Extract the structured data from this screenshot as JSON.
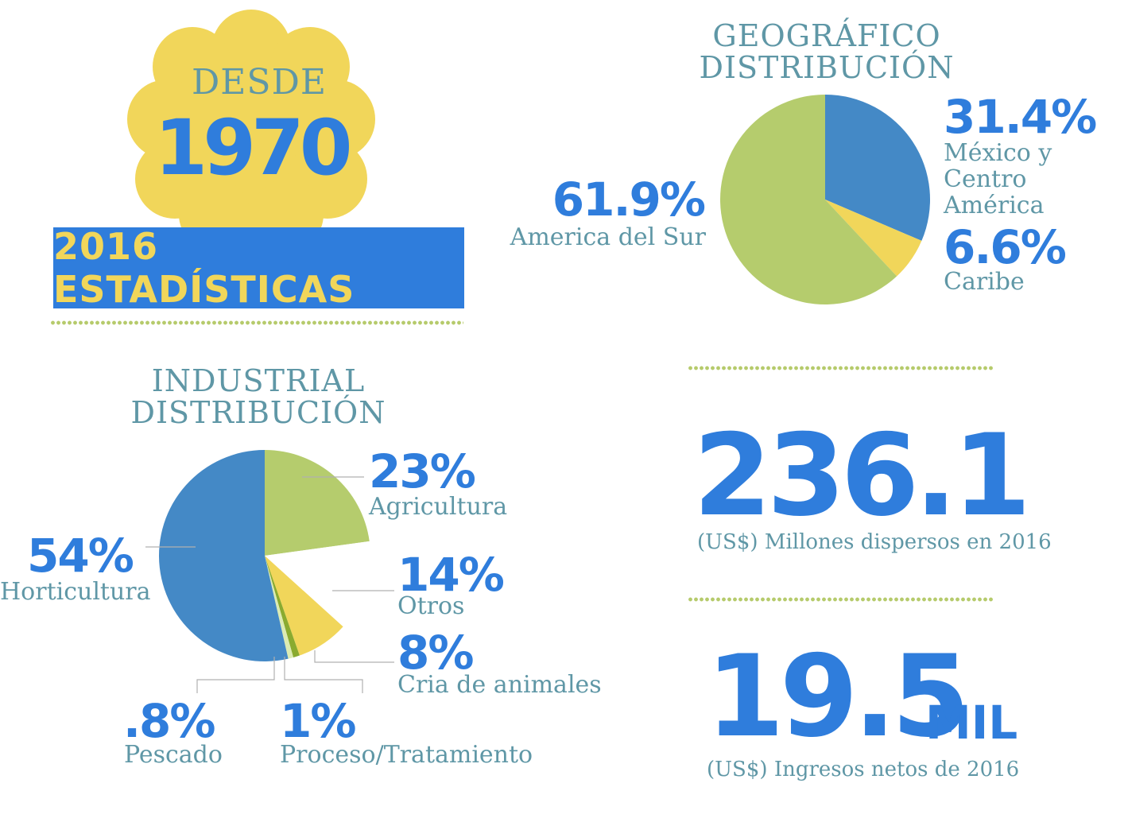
{
  "badge": {
    "desde": "DESDE",
    "year": "1970"
  },
  "banner": {
    "label": "2016 ESTADÍSTICAS"
  },
  "colors": {
    "blue": "#2f7ddc",
    "pie_blue": "#4489c6",
    "green": "#b5cc6d",
    "yellow": "#f1d65a",
    "teal_text": "#5f97a6",
    "dark_green": "#8aab2f",
    "pale_green": "#dcebb2",
    "white": "#ffffff"
  },
  "geo": {
    "heading_line1": "GEOGRÁFICO",
    "heading_line2": "DISTRIBUCIÓN",
    "labels": [
      {
        "pct": "31.4%",
        "line1": "México y",
        "line2": "Centro América"
      },
      {
        "pct": "6.6%",
        "line1": "Caribe",
        "line2": ""
      },
      {
        "pct": "61.9%",
        "line1": "America del Sur",
        "line2": ""
      }
    ]
  },
  "industrial": {
    "heading_line1": "INDUSTRIAL",
    "heading_line2": "DISTRIBUCIÓN",
    "labels": [
      {
        "pct": "23%",
        "name": "Agricultura"
      },
      {
        "pct": "14%",
        "name": "Otros"
      },
      {
        "pct": "8%",
        "name": "Cria de animales"
      },
      {
        "pct": "1%",
        "name": "Proceso/Tratamiento"
      },
      {
        "pct": ".8%",
        "name": "Pescado"
      },
      {
        "pct": "54%",
        "name": "Horticultura"
      }
    ]
  },
  "stats": {
    "dispersed_value": "236.1",
    "dispersed_caption": "(US$) Millones dispersos en 2016",
    "income_value": "19.5",
    "income_unit": "MIL",
    "income_caption": "(US$) Ingresos netos de 2016"
  },
  "chart_data": [
    {
      "type": "pie",
      "title": "GEOGRÁFICO DISTRIBUCIÓN",
      "categories": [
        "México y Centro América",
        "Caribe",
        "America del Sur"
      ],
      "values": [
        31.4,
        6.6,
        61.9
      ],
      "colors": [
        "#4489c6",
        "#f1d65a",
        "#b5cc6d"
      ],
      "start_angle_deg": 0,
      "direction": "clockwise"
    },
    {
      "type": "pie",
      "title": "INDUSTRIAL DISTRIBUCIÓN",
      "categories": [
        "Agricultura",
        "Otros",
        "Cria de animales",
        "Proceso/Tratamiento",
        "Pescado",
        "Horticultura"
      ],
      "values": [
        23,
        14,
        8,
        1,
        0.8,
        54
      ],
      "colors": [
        "#b5cc6d",
        "#ffffff",
        "#f1d65a",
        "#8aab2f",
        "#dcebb2",
        "#4489c6"
      ],
      "start_angle_deg": 0,
      "direction": "clockwise"
    }
  ]
}
